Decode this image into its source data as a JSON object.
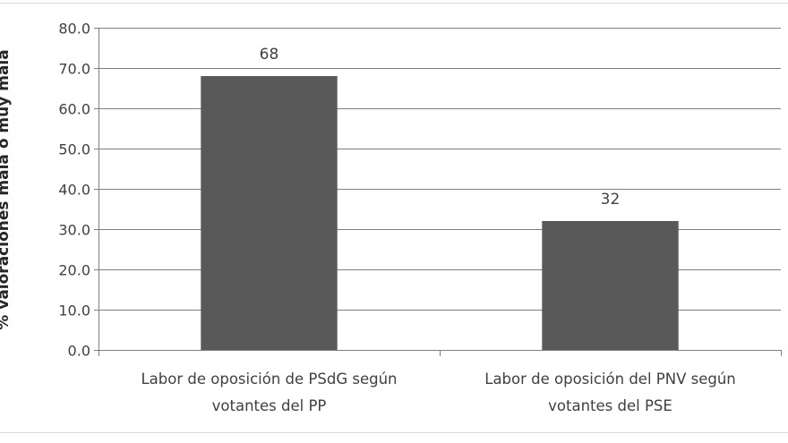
{
  "chart_data": {
    "type": "bar",
    "categories": [
      [
        "Labor de oposición de  PSdG según",
        "votantes del PP"
      ],
      [
        "Labor de oposición del PNV según",
        "votantes del PSE"
      ]
    ],
    "values": [
      68,
      32
    ],
    "data_labels": [
      "68",
      "32"
    ],
    "ylabel": "% valoraciones mala o muy mala",
    "xlabel": "",
    "title": "",
    "ylim": [
      0,
      80
    ],
    "yticks": [
      "0.0",
      "10.0",
      "20.0",
      "30.0",
      "40.0",
      "50.0",
      "60.0",
      "70.0",
      "80.0"
    ],
    "grid": true,
    "bar_color": "#595959"
  }
}
